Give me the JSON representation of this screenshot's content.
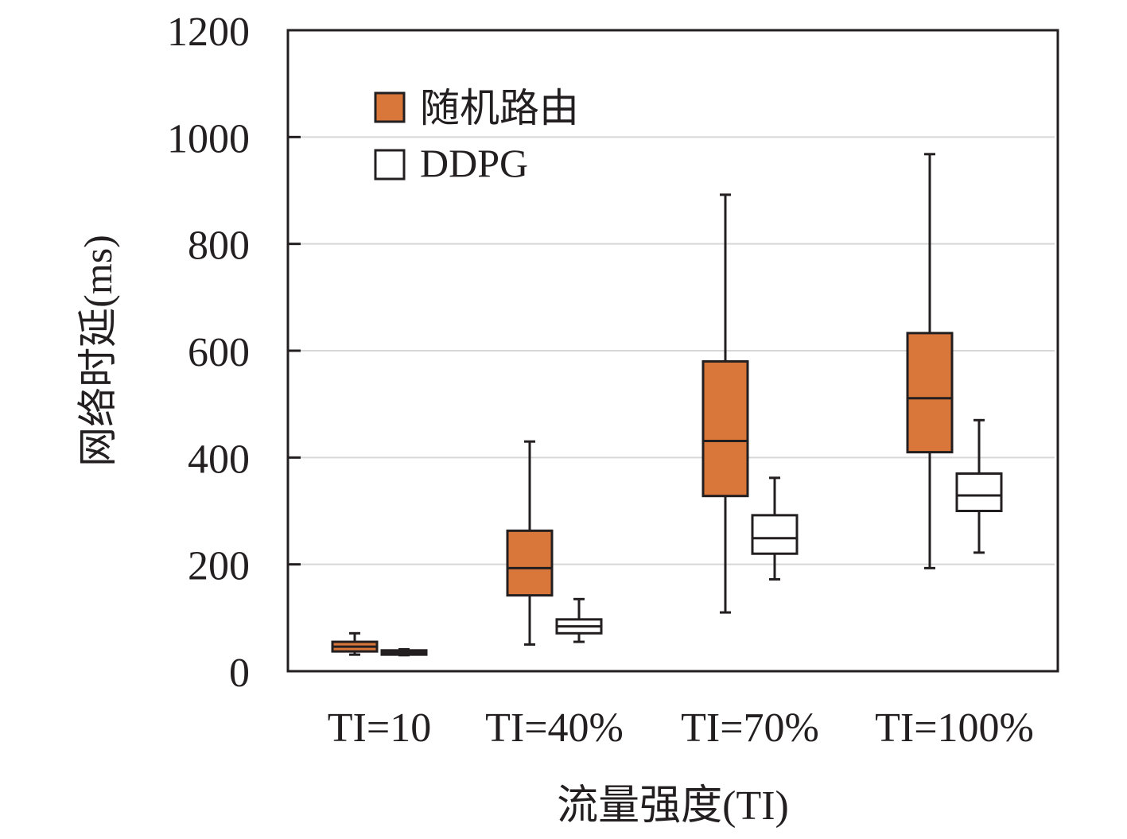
{
  "chart_data": {
    "type": "boxplot",
    "title": "",
    "xlabel": "流量强度(TI)",
    "ylabel": "网络时延(ms)",
    "ylim": [
      0,
      1200
    ],
    "yticks": [
      0,
      200,
      400,
      600,
      800,
      1000,
      1200
    ],
    "grid": "horizontal",
    "legend_position": "top-left",
    "categories": [
      "TI=10",
      "TI=40%",
      "TI=70%",
      "TI=100%"
    ],
    "series": [
      {
        "name": "随机路由",
        "color": "#d9763a",
        "boxes": [
          {
            "min": 31,
            "q1": 37,
            "median": 46,
            "q3": 55,
            "max": 71
          },
          {
            "min": 50,
            "q1": 142,
            "median": 193,
            "q3": 263,
            "max": 430
          },
          {
            "min": 110,
            "q1": 328,
            "median": 431,
            "q3": 580,
            "max": 892
          },
          {
            "min": 193,
            "q1": 410,
            "median": 511,
            "q3": 633,
            "max": 968
          }
        ]
      },
      {
        "name": "DDPG",
        "color": "#ffffff",
        "boxes": [
          {
            "min": 30,
            "q1": 31,
            "median": 35,
            "q3": 39,
            "max": 41
          },
          {
            "min": 55,
            "q1": 71,
            "median": 84,
            "q3": 97,
            "max": 135
          },
          {
            "min": 172,
            "q1": 220,
            "median": 249,
            "q3": 292,
            "max": 362
          },
          {
            "min": 222,
            "q1": 300,
            "median": 329,
            "q3": 370,
            "max": 470
          }
        ]
      }
    ]
  }
}
